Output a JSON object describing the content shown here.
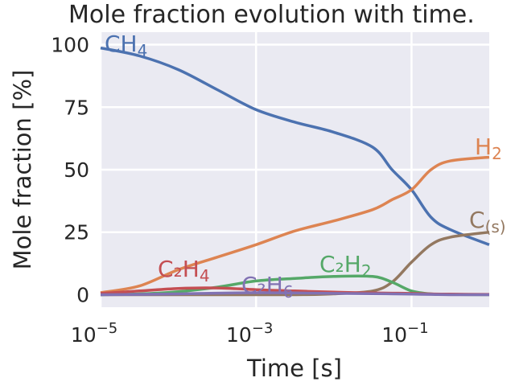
{
  "chart_data": {
    "type": "line",
    "title": "Mole fraction evolution with time.",
    "xlabel": "Time [s]",
    "ylabel": "Mole fraction [%]",
    "xscale": "log",
    "xlim": [
      1e-05,
      1
    ],
    "ylim": [
      -5,
      105
    ],
    "grid": true,
    "background": "#eaeaf2",
    "xticks": [
      {
        "value": 1e-05,
        "base": "10",
        "exp": "−5"
      },
      {
        "value": 0.001,
        "base": "10",
        "exp": "−3"
      },
      {
        "value": 0.1,
        "base": "10",
        "exp": "−1"
      }
    ],
    "yticks": [
      0,
      25,
      50,
      75,
      100
    ],
    "x": [
      1e-05,
      3.16e-05,
      0.0001,
      0.000316,
      0.001,
      0.00316,
      0.01,
      0.0316,
      0.0562,
      0.1,
      0.178,
      0.316,
      1
    ],
    "series": [
      {
        "name": "CH4",
        "label_main": "CH",
        "label_sub": "4",
        "color": "#4c72b0",
        "values": [
          98.7,
          95.5,
          90,
          82,
          74,
          69,
          65,
          59,
          50,
          42,
          31,
          26,
          20
        ]
      },
      {
        "name": "H2",
        "label_main": "H",
        "label_sub": "2",
        "color": "#dd8452",
        "values": [
          0.8,
          3.5,
          10,
          15,
          20,
          25.5,
          29.5,
          34,
          38,
          42,
          50,
          53.5,
          55
        ]
      },
      {
        "name": "C(s)",
        "label_main": "C",
        "label_sub": "(s)",
        "color": "#937860",
        "values": [
          0,
          0,
          0,
          0,
          0,
          0,
          0.3,
          1.5,
          5,
          13,
          20,
          23,
          25
        ]
      },
      {
        "name": "C2H2",
        "label_main": "C₂H",
        "label_sub": "2",
        "color": "#55a868",
        "values": [
          0,
          0.3,
          1.2,
          3,
          5.5,
          6.5,
          7.3,
          7.3,
          5,
          1.5,
          0.3,
          0.1,
          0
        ]
      },
      {
        "name": "C2H4",
        "label_main": "C₂H",
        "label_sub": "4",
        "color": "#c44e52",
        "values": [
          0.5,
          1.5,
          2.5,
          2.7,
          2,
          1.5,
          1,
          0.7,
          0.6,
          0.5,
          0.3,
          0.2,
          0.1
        ]
      },
      {
        "name": "C2H6",
        "label_main": "C₂H",
        "label_sub": "6",
        "color": "#8172b3",
        "values": [
          0,
          0.1,
          0.3,
          0.6,
          0.8,
          0.7,
          0.5,
          0.4,
          0.3,
          0.2,
          0.1,
          0,
          0
        ]
      }
    ]
  }
}
